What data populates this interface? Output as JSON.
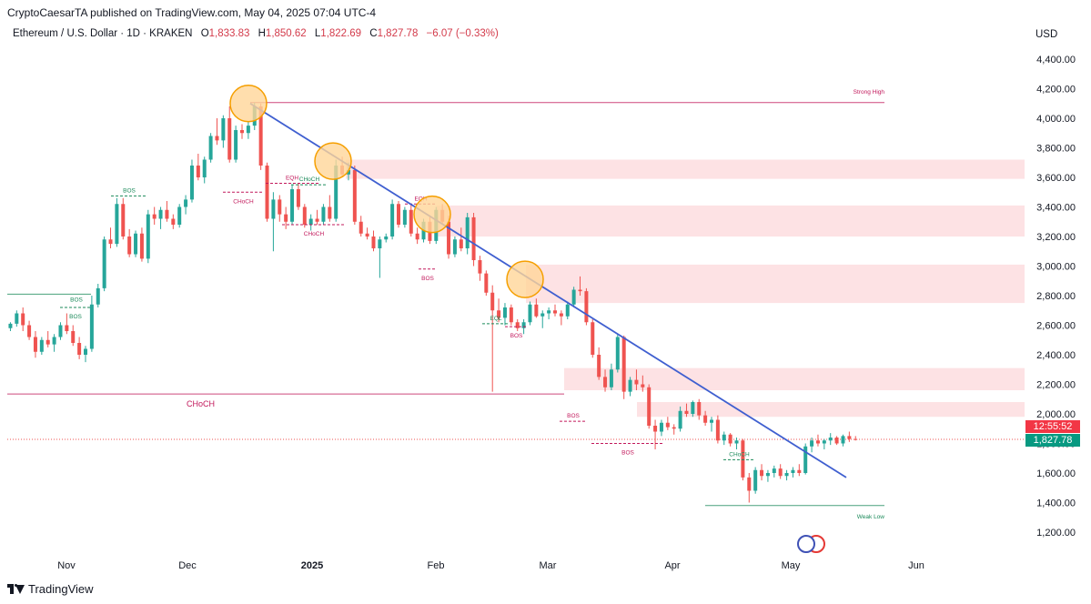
{
  "header": {
    "publisher_line": "CryptoCaesarTA published on TradingView.com, May 04, 2025 07:04 UTC-4",
    "symbol": "Ethereum / U.S. Dollar · 1D · KRAKEN",
    "ohlc": {
      "o_label": "O",
      "o": "1,833.83",
      "h_label": "H",
      "h": "1,850.62",
      "l_label": "L",
      "l": "1,822.69",
      "c_label": "C",
      "c": "1,827.78",
      "change": "−6.07 (−0.33%)"
    },
    "currency": "USD"
  },
  "footer": {
    "brand": "TradingView"
  },
  "price_tags": {
    "countdown": "12:55:52",
    "last_price": "1,827.78"
  },
  "colors": {
    "up": "#26a69a",
    "down": "#ef5350",
    "trendline": "#3f5fd0",
    "zone": "#fde2e4",
    "circle_fill": "#ffd699",
    "circle_stroke": "#f59f00",
    "structure_red": "#c2185b",
    "structure_green": "#1b8a5a"
  },
  "chart_data": {
    "type": "candlestick",
    "title": "Ethereum / U.S. Dollar · 1D · KRAKEN",
    "ylabel": "USD",
    "ylim": [
      1100,
      4600
    ],
    "y_ticks": [
      "1,200.00",
      "1,400.00",
      "1,600.00",
      "1,800.00",
      "2,000.00",
      "2,200.00",
      "2,400.00",
      "2,600.00",
      "2,800.00",
      "3,000.00",
      "3,200.00",
      "3,400.00",
      "3,600.00",
      "3,800.00",
      "4,000.00",
      "4,200.00",
      "4,400.00"
    ],
    "x_ticks": [
      "Nov",
      "Dec",
      "2025",
      "Feb",
      "Mar",
      "Apr",
      "May",
      "Jun"
    ],
    "grid": false,
    "candles_approx": [
      [
        2580,
        2620,
        2560,
        2610
      ],
      [
        2610,
        2700,
        2590,
        2680
      ],
      [
        2680,
        2720,
        2560,
        2600
      ],
      [
        2600,
        2630,
        2500,
        2520
      ],
      [
        2520,
        2560,
        2380,
        2420
      ],
      [
        2420,
        2520,
        2400,
        2500
      ],
      [
        2500,
        2560,
        2450,
        2470
      ],
      [
        2470,
        2540,
        2420,
        2520
      ],
      [
        2520,
        2620,
        2500,
        2600
      ],
      [
        2600,
        2680,
        2540,
        2560
      ],
      [
        2560,
        2600,
        2460,
        2480
      ],
      [
        2480,
        2520,
        2370,
        2400
      ],
      [
        2400,
        2460,
        2350,
        2440
      ],
      [
        2440,
        2800,
        2420,
        2740
      ],
      [
        2740,
        2880,
        2720,
        2850
      ],
      [
        2850,
        3200,
        2830,
        3180
      ],
      [
        3180,
        3260,
        3120,
        3150
      ],
      [
        3150,
        3460,
        3130,
        3420
      ],
      [
        3420,
        3460,
        3180,
        3200
      ],
      [
        3200,
        3250,
        3060,
        3080
      ],
      [
        3080,
        3240,
        3060,
        3220
      ],
      [
        3220,
        3260,
        3030,
        3050
      ],
      [
        3050,
        3380,
        3020,
        3350
      ],
      [
        3350,
        3400,
        3280,
        3320
      ],
      [
        3320,
        3400,
        3250,
        3380
      ],
      [
        3380,
        3440,
        3300,
        3320
      ],
      [
        3320,
        3350,
        3250,
        3280
      ],
      [
        3280,
        3420,
        3260,
        3400
      ],
      [
        3400,
        3480,
        3350,
        3450
      ],
      [
        3450,
        3720,
        3430,
        3680
      ],
      [
        3680,
        3760,
        3580,
        3600
      ],
      [
        3600,
        3740,
        3560,
        3720
      ],
      [
        3720,
        3900,
        3700,
        3880
      ],
      [
        3880,
        4000,
        3820,
        3850
      ],
      [
        3850,
        4020,
        3800,
        4000
      ],
      [
        4000,
        4080,
        3700,
        3720
      ],
      [
        3720,
        3950,
        3700,
        3920
      ],
      [
        3920,
        3960,
        3860,
        3900
      ],
      [
        3900,
        3980,
        3860,
        3950
      ],
      [
        3950,
        4106,
        3920,
        4080
      ],
      [
        4080,
        4100,
        3650,
        3680
      ],
      [
        3680,
        3700,
        3300,
        3320
      ],
      [
        3320,
        3500,
        3100,
        3450
      ],
      [
        3450,
        3480,
        3300,
        3350
      ],
      [
        3350,
        3400,
        3250,
        3300
      ],
      [
        3300,
        3550,
        3280,
        3520
      ],
      [
        3520,
        3560,
        3380,
        3400
      ],
      [
        3400,
        3420,
        3260,
        3280
      ],
      [
        3280,
        3350,
        3240,
        3320
      ],
      [
        3320,
        3380,
        3280,
        3300
      ],
      [
        3300,
        3420,
        3280,
        3400
      ],
      [
        3400,
        3480,
        3300,
        3320
      ],
      [
        3320,
        3720,
        3300,
        3680
      ],
      [
        3680,
        3740,
        3600,
        3620
      ],
      [
        3620,
        3700,
        3580,
        3650
      ],
      [
        3650,
        3680,
        3280,
        3300
      ],
      [
        3300,
        3340,
        3200,
        3220
      ],
      [
        3220,
        3260,
        3180,
        3200
      ],
      [
        3200,
        3240,
        3100,
        3120
      ],
      [
        3120,
        3200,
        2920,
        3180
      ],
      [
        3180,
        3220,
        3160,
        3200
      ],
      [
        3200,
        3450,
        3180,
        3420
      ],
      [
        3420,
        3440,
        3260,
        3280
      ],
      [
        3280,
        3400,
        3260,
        3380
      ],
      [
        3380,
        3420,
        3200,
        3220
      ],
      [
        3220,
        3260,
        3150,
        3180
      ],
      [
        3180,
        3320,
        3160,
        3300
      ],
      [
        3300,
        3340,
        3150,
        3170
      ],
      [
        3170,
        3400,
        3150,
        3380
      ],
      [
        3380,
        3420,
        3280,
        3300
      ],
      [
        3300,
        3340,
        3050,
        3080
      ],
      [
        3080,
        3200,
        3060,
        3180
      ],
      [
        3180,
        3260,
        3100,
        3120
      ],
      [
        3120,
        3360,
        3080,
        3330
      ],
      [
        3330,
        3360,
        3000,
        3040
      ],
      [
        3040,
        3070,
        2900,
        2950
      ],
      [
        2950,
        2970,
        2800,
        2820
      ],
      [
        2820,
        2870,
        2150,
        2700
      ],
      [
        2700,
        2780,
        2620,
        2650
      ],
      [
        2650,
        2750,
        2600,
        2720
      ],
      [
        2720,
        2740,
        2600,
        2620
      ],
      [
        2620,
        2640,
        2560,
        2580
      ],
      [
        2580,
        2640,
        2540,
        2620
      ],
      [
        2620,
        2760,
        2600,
        2740
      ],
      [
        2740,
        2780,
        2650,
        2660
      ],
      [
        2660,
        2700,
        2580,
        2680
      ],
      [
        2680,
        2720,
        2640,
        2700
      ],
      [
        2700,
        2740,
        2660,
        2680
      ],
      [
        2680,
        2700,
        2600,
        2660
      ],
      [
        2660,
        2760,
        2640,
        2740
      ],
      [
        2740,
        2860,
        2720,
        2840
      ],
      [
        2840,
        2930,
        2800,
        2830
      ],
      [
        2830,
        2850,
        2600,
        2620
      ],
      [
        2620,
        2640,
        2380,
        2400
      ],
      [
        2400,
        2450,
        2230,
        2250
      ],
      [
        2250,
        2300,
        2150,
        2180
      ],
      [
        2180,
        2340,
        2160,
        2300
      ],
      [
        2300,
        2540,
        2280,
        2520
      ],
      [
        2520,
        2530,
        2100,
        2150
      ],
      [
        2150,
        2250,
        2120,
        2230
      ],
      [
        2230,
        2300,
        2160,
        2200
      ],
      [
        2200,
        2260,
        2150,
        2180
      ],
      [
        2180,
        2200,
        1900,
        1920
      ],
      [
        1920,
        1960,
        1760,
        1880
      ],
      [
        1880,
        1960,
        1850,
        1940
      ],
      [
        1940,
        1980,
        1890,
        1910
      ],
      [
        1910,
        1930,
        1860,
        1900
      ],
      [
        1900,
        2050,
        1880,
        2020
      ],
      [
        2020,
        2070,
        1980,
        2000
      ],
      [
        2000,
        2090,
        1980,
        2080
      ],
      [
        2080,
        2100,
        1960,
        1990
      ],
      [
        1990,
        2020,
        1920,
        1940
      ],
      [
        1940,
        1980,
        1880,
        1960
      ],
      [
        1960,
        1990,
        1800,
        1820
      ],
      [
        1820,
        1880,
        1790,
        1860
      ],
      [
        1860,
        1870,
        1780,
        1800
      ],
      [
        1800,
        1840,
        1760,
        1820
      ],
      [
        1820,
        1830,
        1550,
        1570
      ],
      [
        1570,
        1600,
        1400,
        1480
      ],
      [
        1480,
        1640,
        1460,
        1620
      ],
      [
        1620,
        1660,
        1550,
        1580
      ],
      [
        1580,
        1620,
        1540,
        1600
      ],
      [
        1600,
        1650,
        1570,
        1630
      ],
      [
        1630,
        1660,
        1560,
        1580
      ],
      [
        1580,
        1620,
        1550,
        1600
      ],
      [
        1600,
        1640,
        1570,
        1620
      ],
      [
        1620,
        1660,
        1580,
        1600
      ],
      [
        1600,
        1800,
        1590,
        1780
      ],
      [
        1780,
        1840,
        1740,
        1820
      ],
      [
        1820,
        1860,
        1780,
        1800
      ],
      [
        1800,
        1830,
        1760,
        1820
      ],
      [
        1820,
        1870,
        1790,
        1840
      ],
      [
        1840,
        1850,
        1790,
        1800
      ],
      [
        1800,
        1860,
        1780,
        1850
      ],
      [
        1850,
        1880,
        1810,
        1830
      ],
      [
        1830,
        1850,
        1820,
        1828
      ]
    ],
    "trendline": {
      "from_price": 4100,
      "to_price": 1570
    },
    "supply_zones": [
      [
        3590,
        3720
      ],
      [
        3200,
        3410
      ],
      [
        2750,
        3010
      ],
      [
        2160,
        2310
      ],
      [
        1980,
        2080
      ]
    ],
    "horizontal_levels": [
      {
        "price": 4106,
        "label": "Strong High",
        "color": "red"
      },
      {
        "price": 2135,
        "label": "CHoCH",
        "color": "red"
      },
      {
        "price": 2810,
        "label": "BOS",
        "color": "green"
      },
      {
        "price": 1380,
        "label": "Weak Low",
        "color": "green"
      }
    ],
    "structure_labels": [
      "BOS",
      "BOS",
      "EQH",
      "CHoCH",
      "CHoCH",
      "CHoCH",
      "EQH",
      "BOS",
      "EQL",
      "BOS",
      "BOS",
      "BOS",
      "CHoCH"
    ],
    "last_price": 1827.78
  }
}
